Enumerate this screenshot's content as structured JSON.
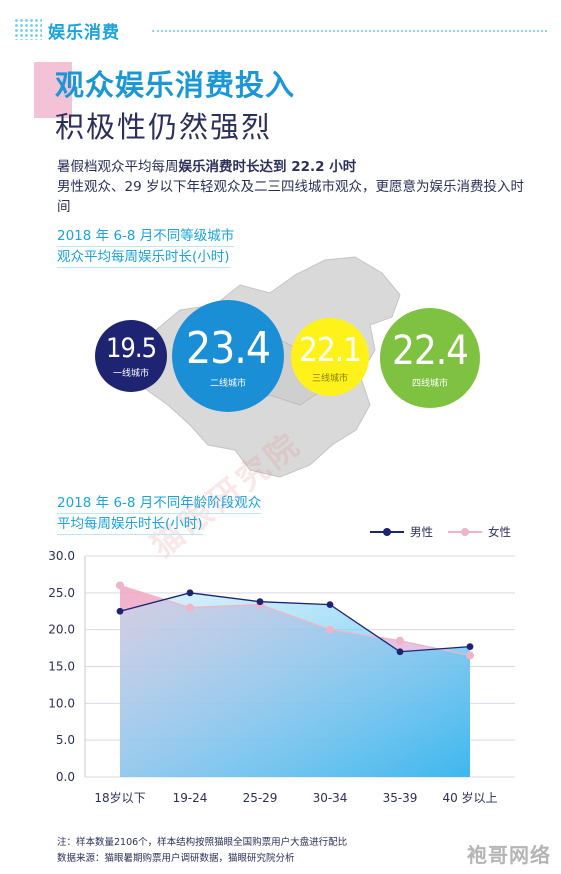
{
  "section_tag": "娱乐消费",
  "title": {
    "line1": "观众娱乐消费投入",
    "line2": "积极性仍然强烈"
  },
  "intro": {
    "line1_prefix": "暑假档观众平均每周",
    "line1_bold": "娱乐消费时长达到 22.2 小时",
    "line2": "男性观众、29 岁以下年轻观众及二三四线城市观众，更愿意为娱乐消费投入时间"
  },
  "city_section": {
    "title_line1": "2018 年 6-8 月不同等级城市",
    "title_line2": "观众平均每周娱乐时长(小时)",
    "bubbles": [
      {
        "value": "19.5",
        "label": "一线城市",
        "color": "#1e2372"
      },
      {
        "value": "23.4",
        "label": "二线城市",
        "color": "#1b8fd6"
      },
      {
        "value": "22.1",
        "label": "三线城市",
        "color": "#fff21a"
      },
      {
        "value": "22.4",
        "label": "四线城市",
        "color": "#7fc241"
      }
    ]
  },
  "age_section": {
    "title_line1": "2018 年 6-8 月不同年龄阶段观众",
    "title_line2": "平均每周娱乐时长(小时)"
  },
  "chart_data": {
    "type": "line",
    "categories": [
      "18岁以下",
      "19-24",
      "25-29",
      "30-34",
      "35-39",
      "40 岁以上"
    ],
    "series": [
      {
        "name": "男性",
        "values": [
          22.5,
          25.0,
          23.8,
          23.4,
          17.0,
          17.7
        ],
        "color": "#1e2372"
      },
      {
        "name": "女性",
        "values": [
          26.0,
          23.0,
          23.4,
          20.0,
          18.5,
          16.5
        ],
        "color": "#f0b4c8"
      }
    ],
    "yticks": [
      "0.0",
      "5.0",
      "10.0",
      "15.0",
      "20.0",
      "25.0",
      "30.0"
    ],
    "ylim": [
      0,
      30
    ],
    "grid": true,
    "legend_position": "top-right"
  },
  "footnotes": {
    "note": "注：样本数量2106个，样本结构按照猫眼全国购票用户大盘进行配比",
    "source": "数据来源：猫眼暑期购票用户调研数据，猫眼研究院分析"
  },
  "watermark": "猫眼研究院",
  "corner_mark": "袍哥网络"
}
